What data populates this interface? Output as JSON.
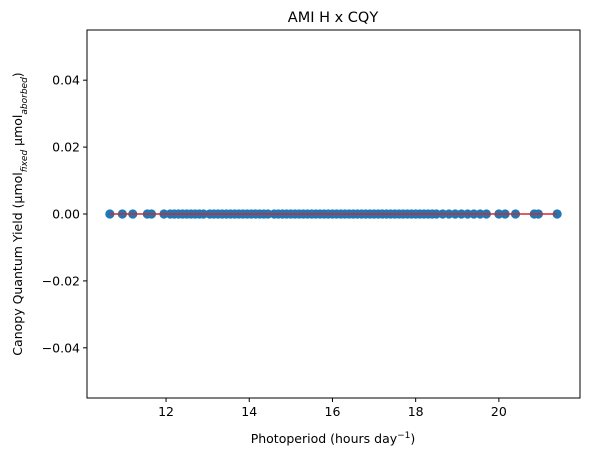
{
  "chart_data": {
    "type": "scatter",
    "title": "AMI H x CQY",
    "xlabel": {
      "text": "Photoperiod (hours day",
      "sup": "−1",
      "suffix": ")"
    },
    "ylabel": {
      "parts": [
        {
          "t": "Canopy Quantum Yield (μmol",
          "s": "n"
        },
        {
          "t": "fixed",
          "s": "sub"
        },
        {
          "t": " μmol",
          "s": "n"
        },
        {
          "t": "aborbed",
          "s": "sub"
        },
        {
          "t": ")",
          "s": "n"
        }
      ]
    },
    "xlim": [
      10.1,
      21.95
    ],
    "ylim": [
      -0.055,
      0.055
    ],
    "xticks": [
      12,
      14,
      16,
      18,
      20
    ],
    "xtick_labels": [
      "12",
      "14",
      "16",
      "18",
      "20"
    ],
    "yticks": [
      0.04,
      0.02,
      0.0,
      -0.02,
      -0.04
    ],
    "ytick_labels": [
      "0.04",
      "0.02",
      "0.00",
      "−0.02",
      "−0.04"
    ],
    "grid": false,
    "marker_color": "#1f77b4",
    "fit_color": "#d62728",
    "points": {
      "x": [
        10.65,
        10.95,
        11.2,
        11.55,
        11.65,
        11.95,
        12.1,
        12.2,
        12.3,
        12.4,
        12.5,
        12.6,
        12.7,
        12.8,
        12.9,
        13.05,
        13.15,
        13.25,
        13.35,
        13.45,
        13.55,
        13.65,
        13.75,
        13.85,
        13.95,
        14.05,
        14.15,
        14.25,
        14.35,
        14.45,
        14.6,
        14.7,
        14.8,
        14.9,
        15.0,
        15.1,
        15.2,
        15.3,
        15.4,
        15.5,
        15.6,
        15.7,
        15.8,
        15.9,
        16.0,
        16.1,
        16.2,
        16.3,
        16.4,
        16.5,
        16.6,
        16.7,
        16.8,
        16.9,
        17.0,
        17.1,
        17.2,
        17.3,
        17.4,
        17.5,
        17.6,
        17.7,
        17.8,
        17.9,
        18.0,
        18.1,
        18.2,
        18.3,
        18.4,
        18.5,
        18.65,
        18.8,
        18.95,
        19.1,
        19.25,
        19.4,
        19.55,
        19.7,
        20.0,
        20.15,
        20.4,
        20.85,
        20.95,
        21.4
      ],
      "y": [
        0,
        0,
        0,
        0,
        0,
        0,
        0,
        0,
        0,
        0,
        0,
        0,
        0,
        0,
        0,
        0,
        0,
        0,
        0,
        0,
        0,
        0,
        0,
        0,
        0,
        0,
        0,
        0,
        0,
        0,
        0,
        0,
        0,
        0,
        0,
        0,
        0,
        0,
        0,
        0,
        0,
        0,
        0,
        0,
        0,
        0,
        0,
        0,
        0,
        0,
        0,
        0,
        0,
        0,
        0,
        0,
        0,
        0,
        0,
        0,
        0,
        0,
        0,
        0,
        0,
        0,
        0,
        0,
        0,
        0,
        0,
        0,
        0,
        0,
        0,
        0,
        0,
        0,
        0,
        0,
        0,
        0,
        0,
        0
      ]
    },
    "fit_line": {
      "x": [
        10.65,
        21.4
      ],
      "y": [
        0,
        0
      ]
    }
  }
}
